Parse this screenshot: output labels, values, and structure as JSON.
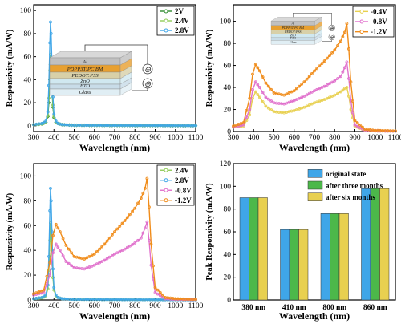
{
  "chart_data": [
    {
      "type": "line",
      "xlabel": "Wavelength (nm)",
      "ylabel": "Responsivity (mA/W)",
      "xlim": [
        300,
        1100
      ],
      "ylim": [
        -5,
        105
      ],
      "xticks": [
        300,
        400,
        500,
        600,
        700,
        800,
        900,
        1000,
        1100
      ],
      "yticks": [
        0,
        20,
        40,
        60,
        80,
        100
      ],
      "legend_position": "top-right",
      "series": [
        {
          "name": "2V",
          "color": "#2d8a2d",
          "marker": "diamond",
          "x": [
            300,
            340,
            360,
            370,
            375,
            380,
            383,
            386,
            390,
            395,
            400,
            410,
            420,
            440,
            500,
            700,
            900,
            1100
          ],
          "y": [
            1,
            1.5,
            3,
            8,
            20,
            40,
            53,
            50,
            35,
            16,
            7,
            3,
            2,
            1,
            0.5,
            0.3,
            0.2,
            0.1
          ]
        },
        {
          "name": "2.4V",
          "color": "#90cc58",
          "marker": "circle",
          "x": [
            300,
            340,
            360,
            370,
            375,
            380,
            383,
            386,
            390,
            395,
            400,
            410,
            420,
            440,
            500,
            700,
            900,
            1100
          ],
          "y": [
            1,
            1.5,
            3,
            9,
            24,
            48,
            62,
            57,
            40,
            18,
            8,
            3,
            2,
            1,
            0.5,
            0.3,
            0.2,
            0.1
          ]
        },
        {
          "name": "2.8V",
          "color": "#3fa6e8",
          "marker": "circle",
          "x": [
            300,
            340,
            360,
            370,
            375,
            380,
            383,
            386,
            390,
            395,
            400,
            410,
            420,
            440,
            500,
            700,
            900,
            1100
          ],
          "y": [
            1,
            2,
            4,
            12,
            35,
            72,
            90,
            80,
            55,
            25,
            10,
            4,
            2,
            1,
            0.5,
            0.3,
            0.2,
            0.1
          ]
        }
      ]
    },
    {
      "type": "line",
      "xlabel": "Wavelength (nm)",
      "ylabel": "Responsivity (mA/W)",
      "xlim": [
        300,
        1100
      ],
      "ylim": [
        0,
        115
      ],
      "xticks": [
        300,
        400,
        500,
        600,
        700,
        800,
        900,
        1000,
        1100
      ],
      "yticks": [
        0,
        20,
        40,
        60,
        80,
        100
      ],
      "legend_position": "top-right",
      "series": [
        {
          "name": "-0.4V",
          "color": "#e8d050",
          "marker": "circle",
          "x": [
            300,
            350,
            380,
            395,
            410,
            430,
            460,
            500,
            550,
            600,
            650,
            700,
            750,
            800,
            830,
            850,
            860,
            870,
            880,
            900,
            950,
            1000,
            1100
          ],
          "y": [
            4,
            5,
            15,
            30,
            36,
            31,
            23,
            18,
            17,
            19,
            22,
            26,
            29,
            33,
            36,
            39,
            40,
            32,
            20,
            5,
            1,
            0.5,
            0.3
          ]
        },
        {
          "name": "-0.8V",
          "color": "#e070cc",
          "marker": "circle",
          "x": [
            300,
            350,
            380,
            395,
            410,
            430,
            460,
            500,
            550,
            600,
            650,
            700,
            750,
            800,
            830,
            850,
            860,
            870,
            880,
            900,
            950,
            1000,
            1100
          ],
          "y": [
            4,
            6,
            20,
            38,
            45,
            40,
            31,
            26,
            25,
            28,
            32,
            37,
            41,
            46,
            50,
            58,
            63,
            48,
            28,
            6,
            1,
            0.5,
            0.3
          ]
        },
        {
          "name": "-1.2V",
          "color": "#f08c1a",
          "marker": "circle",
          "x": [
            300,
            350,
            380,
            395,
            410,
            430,
            460,
            500,
            550,
            600,
            650,
            700,
            750,
            800,
            830,
            850,
            860,
            870,
            880,
            900,
            950,
            1000,
            1100
          ],
          "y": [
            5,
            8,
            30,
            52,
            61,
            55,
            44,
            35,
            33,
            37,
            45,
            55,
            64,
            74,
            82,
            90,
            98,
            75,
            45,
            10,
            2,
            1,
            0.5
          ]
        }
      ]
    },
    {
      "type": "line",
      "xlabel": "Wavelength (nm)",
      "ylabel": "Responsivity (mA/W)",
      "xlim": [
        300,
        1100
      ],
      "ylim": [
        0,
        110
      ],
      "xticks": [
        300,
        400,
        500,
        600,
        700,
        800,
        900,
        1000,
        1100
      ],
      "yticks": [
        0,
        20,
        40,
        60,
        80,
        100
      ],
      "legend_position": "top-right",
      "series": [
        {
          "name": "2.4V",
          "color": "#90cc58",
          "marker": "circle",
          "x": [
            300,
            340,
            360,
            370,
            375,
            380,
            383,
            386,
            390,
            395,
            400,
            410,
            420,
            440,
            500,
            700,
            900,
            1100
          ],
          "y": [
            1,
            1.5,
            3,
            9,
            24,
            48,
            62,
            57,
            40,
            18,
            8,
            3,
            2,
            1,
            0.5,
            0.3,
            0.2,
            0.1
          ]
        },
        {
          "name": "2.8V",
          "color": "#3fa6e8",
          "marker": "circle",
          "x": [
            300,
            340,
            360,
            370,
            375,
            380,
            383,
            386,
            390,
            395,
            400,
            410,
            420,
            440,
            500,
            700,
            900,
            1100
          ],
          "y": [
            1,
            2,
            4,
            12,
            35,
            72,
            90,
            80,
            55,
            25,
            10,
            4,
            2,
            1,
            0.5,
            0.3,
            0.2,
            0.1
          ]
        },
        {
          "name": "-0.8V",
          "color": "#e070cc",
          "marker": "circle",
          "x": [
            300,
            350,
            380,
            395,
            410,
            430,
            460,
            500,
            550,
            600,
            650,
            700,
            750,
            800,
            830,
            850,
            860,
            870,
            880,
            900,
            950,
            1000,
            1100
          ],
          "y": [
            4,
            6,
            20,
            38,
            45,
            40,
            31,
            26,
            25,
            28,
            32,
            37,
            41,
            46,
            50,
            58,
            63,
            48,
            28,
            6,
            1,
            0.5,
            0.3
          ]
        },
        {
          "name": "-1.2V",
          "color": "#f08c1a",
          "marker": "circle",
          "x": [
            300,
            350,
            380,
            395,
            410,
            430,
            460,
            500,
            550,
            600,
            650,
            700,
            750,
            800,
            830,
            850,
            860,
            870,
            880,
            900,
            950,
            1000,
            1100
          ],
          "y": [
            5,
            8,
            30,
            52,
            61,
            55,
            44,
            35,
            33,
            37,
            45,
            55,
            64,
            74,
            82,
            90,
            98,
            75,
            45,
            10,
            2,
            1,
            0.5
          ]
        }
      ]
    },
    {
      "type": "bar",
      "xlabel": "Wavelength (nm)",
      "ylabel": "Peak Responsivity (mA/W)",
      "ylim": [
        0,
        120
      ],
      "yticks": [
        0,
        20,
        40,
        60,
        80,
        100,
        120
      ],
      "legend_position": "top-right",
      "categories": [
        "380 nm",
        "410 nm",
        "800 nm",
        "860 nm"
      ],
      "series": [
        {
          "name": "original state",
          "color": "#3fa6e8",
          "values": [
            90,
            62,
            76,
            98
          ]
        },
        {
          "name": "after three months",
          "color": "#4cb84a",
          "values": [
            90,
            62,
            76,
            98
          ]
        },
        {
          "name": "after six months",
          "color": "#e8d050",
          "values": [
            90,
            62,
            76,
            98
          ]
        }
      ]
    }
  ],
  "insets": [
    {
      "layers": [
        "Al",
        "PDPP3T:PC",
        "BM",
        "PEDOT:PSS",
        "ZnO",
        "FTO",
        "Glass"
      ],
      "terminals": [
        "⊖",
        "⊕"
      ]
    },
    {
      "layers": [
        "Al",
        "PDPP3T:PC",
        "BM",
        "PEDOT:PSS",
        "ZnO",
        "FTO",
        "Glass"
      ],
      "terminals": [
        "⊕",
        "⊖"
      ]
    }
  ],
  "colors": {
    "axis": "#000000",
    "background": "#ffffff"
  }
}
